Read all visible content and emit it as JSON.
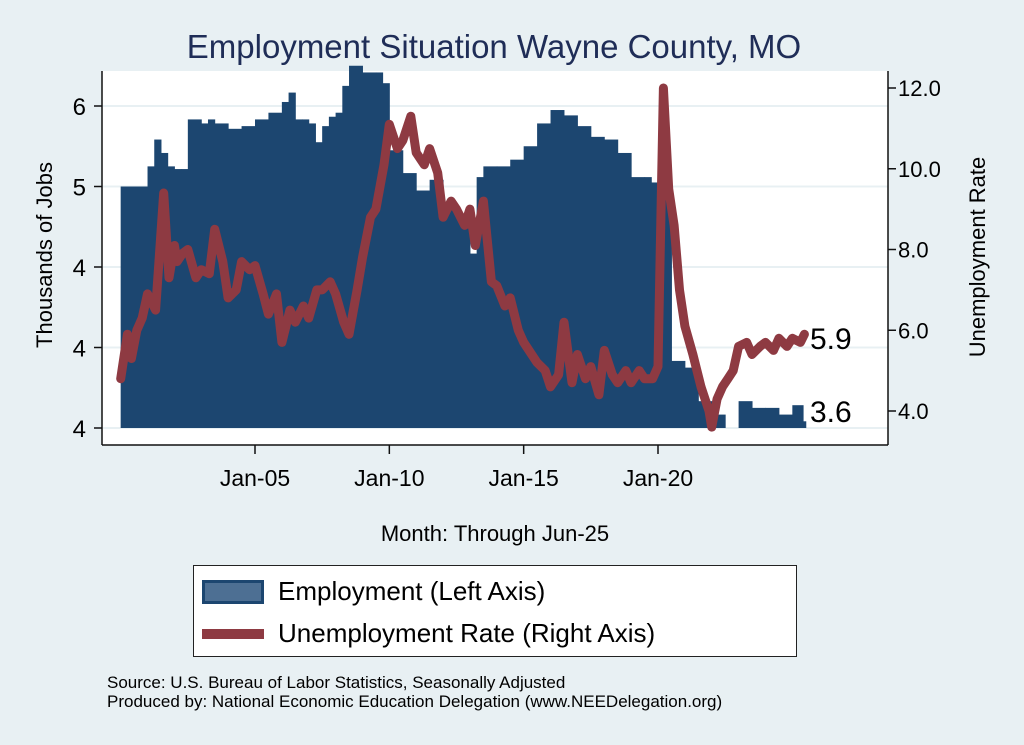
{
  "chart_data": {
    "type": "bar+line",
    "title": "Employment Situation Wayne  County, MO",
    "xlabel": "Month: Through Jun-25",
    "ylabel_left": "Thousands of Jobs",
    "ylabel_right": "Unemployment Rate",
    "x_ticks": [
      "Jan-05",
      "Jan-10",
      "Jan-15",
      "Jan-20"
    ],
    "x_tick_years": [
      2005,
      2010,
      2015,
      2020
    ],
    "x_range": [
      2000.0,
      2025.5
    ],
    "y_left_ticks": [
      {
        "label": "6",
        "value": 5.95
      },
      {
        "label": "5",
        "value": 5.35
      },
      {
        "label": "4",
        "value": 4.75
      },
      {
        "label": "4",
        "value": 4.15
      },
      {
        "label": "4",
        "value": 3.55
      }
    ],
    "y_left_range": [
      3.45,
      6.35
    ],
    "y_right_ticks": [
      {
        "label": "12.0",
        "value": 12.0
      },
      {
        "label": "10.0",
        "value": 10.0
      },
      {
        "label": "8.0",
        "value": 8.0
      },
      {
        "label": "6.0",
        "value": 6.0
      },
      {
        "label": "4.0",
        "value": 4.0
      }
    ],
    "y_right_range": [
      3.2,
      12.45
    ],
    "grid": true,
    "legend_position": "bottom",
    "series": [
      {
        "name": "Employment (Left Axis)",
        "type": "bar",
        "color": "#1c4670",
        "x": [
          2000.0,
          2000.5,
          2001.0,
          2001.25,
          2001.5,
          2001.75,
          2002.0,
          2002.25,
          2002.5,
          2003.0,
          2003.25,
          2003.5,
          2004.0,
          2004.5,
          2005.0,
          2005.5,
          2006.0,
          2006.25,
          2006.5,
          2006.75,
          2007.0,
          2007.25,
          2007.5,
          2007.75,
          2008.0,
          2008.25,
          2008.5,
          2009.0,
          2009.5,
          2009.75,
          2010.0,
          2010.5,
          2011.0,
          2011.5,
          2012.0,
          2012.5,
          2013.0,
          2013.25,
          2013.5,
          2014.0,
          2014.5,
          2015.0,
          2015.5,
          2016.0,
          2016.5,
          2017.0,
          2017.5,
          2018.0,
          2018.5,
          2019.0,
          2019.5,
          2019.75,
          2020.0,
          2020.5,
          2021.0,
          2021.5,
          2022.0,
          2022.5,
          2022.75,
          2023.0,
          2023.5,
          2024.0,
          2024.5,
          2025.0,
          2025.4
        ],
        "values": [
          5.35,
          5.35,
          5.5,
          5.7,
          5.6,
          5.5,
          5.48,
          5.48,
          5.85,
          5.82,
          5.85,
          5.82,
          5.78,
          5.8,
          5.85,
          5.9,
          5.98,
          6.05,
          5.85,
          5.85,
          5.82,
          5.68,
          5.8,
          5.87,
          5.9,
          6.1,
          6.25,
          6.2,
          6.2,
          6.12,
          5.62,
          5.45,
          5.32,
          5.4,
          5.2,
          5.1,
          4.85,
          5.42,
          5.5,
          5.5,
          5.55,
          5.65,
          5.82,
          5.92,
          5.88,
          5.8,
          5.72,
          5.7,
          5.6,
          5.42,
          5.42,
          5.38,
          5.38,
          4.05,
          4.0,
          3.75,
          3.65,
          3.55,
          3.55,
          3.75,
          3.7,
          3.7,
          3.65,
          3.72,
          3.6
        ]
      },
      {
        "name": "Unemployment Rate (Right Axis)",
        "type": "line",
        "color": "#8e3a42",
        "x": [
          2000.0,
          2000.25,
          2000.4,
          2000.6,
          2000.8,
          2001.0,
          2001.3,
          2001.6,
          2001.8,
          2002.0,
          2002.1,
          2002.3,
          2002.5,
          2002.8,
          2003.0,
          2003.3,
          2003.5,
          2003.8,
          2004.0,
          2004.3,
          2004.5,
          2004.8,
          2005.0,
          2005.3,
          2005.5,
          2005.8,
          2006.0,
          2006.3,
          2006.5,
          2006.8,
          2007.0,
          2007.3,
          2007.5,
          2007.8,
          2008.0,
          2008.3,
          2008.5,
          2008.8,
          2009.0,
          2009.3,
          2009.5,
          2009.8,
          2010.0,
          2010.3,
          2010.5,
          2010.8,
          2011.0,
          2011.3,
          2011.5,
          2011.8,
          2012.0,
          2012.3,
          2012.5,
          2012.8,
          2013.0,
          2013.2,
          2013.5,
          2013.8,
          2014.0,
          2014.3,
          2014.5,
          2014.8,
          2015.0,
          2015.3,
          2015.5,
          2015.8,
          2016.0,
          2016.3,
          2016.5,
          2016.8,
          2017.0,
          2017.3,
          2017.5,
          2017.8,
          2018.0,
          2018.3,
          2018.5,
          2018.8,
          2019.0,
          2019.3,
          2019.5,
          2019.8,
          2020.0,
          2020.2,
          2020.4,
          2020.6,
          2020.8,
          2021.0,
          2021.3,
          2021.6,
          2021.9,
          2022.0,
          2022.2,
          2022.4,
          2022.6,
          2022.8,
          2023.0,
          2023.3,
          2023.5,
          2023.8,
          2024.0,
          2024.3,
          2024.5,
          2024.8,
          2025.0,
          2025.3,
          2025.45
        ],
        "values": [
          4.8,
          5.9,
          5.3,
          6.0,
          6.3,
          6.9,
          6.5,
          9.4,
          7.3,
          8.1,
          7.7,
          7.9,
          8.0,
          7.3,
          7.5,
          7.4,
          8.5,
          7.7,
          6.8,
          7.0,
          7.7,
          7.5,
          7.6,
          6.9,
          6.4,
          6.9,
          5.7,
          6.5,
          6.2,
          6.6,
          6.3,
          7.0,
          7.0,
          7.2,
          6.9,
          6.2,
          5.9,
          7.0,
          7.8,
          8.8,
          9.0,
          10.1,
          11.1,
          10.5,
          10.7,
          11.3,
          10.4,
          10.1,
          10.5,
          9.9,
          8.8,
          9.2,
          9.0,
          8.6,
          9.0,
          8.1,
          9.2,
          7.2,
          7.1,
          6.6,
          6.8,
          6.0,
          5.7,
          5.4,
          5.2,
          5.0,
          4.6,
          4.9,
          6.2,
          4.7,
          5.4,
          4.8,
          5.1,
          4.4,
          5.5,
          4.9,
          4.7,
          5.0,
          4.7,
          5.0,
          4.8,
          4.8,
          5.1,
          12.0,
          9.5,
          8.6,
          7.0,
          6.1,
          5.4,
          4.6,
          4.0,
          3.6,
          4.3,
          4.6,
          4.8,
          5.0,
          5.6,
          5.7,
          5.4,
          5.6,
          5.7,
          5.5,
          5.8,
          5.6,
          5.8,
          5.7,
          5.9
        ]
      }
    ],
    "end_labels": [
      {
        "series": "Unemployment Rate (Right Axis)",
        "text": "5.9",
        "value": 5.9
      },
      {
        "series": "Employment (Left Axis)",
        "text": "3.6",
        "value": 3.6
      }
    ]
  },
  "legend": {
    "items": [
      {
        "label": "Employment (Left Axis)"
      },
      {
        "label": "Unemployment Rate (Right Axis)"
      }
    ]
  },
  "notes": {
    "source": "Source: U.S. Bureau of Labor Statistics, Seasonally Adjusted",
    "produced_by": "Produced by: National Economic Education Delegation (www.NEEDelegation.org)"
  },
  "colors": {
    "background": "#e8f0f3",
    "plot_bg": "#ffffff",
    "employment": "#1c4670",
    "unemployment": "#8e3a42",
    "title": "#1f2d57",
    "grid": "#e8f0f3"
  }
}
